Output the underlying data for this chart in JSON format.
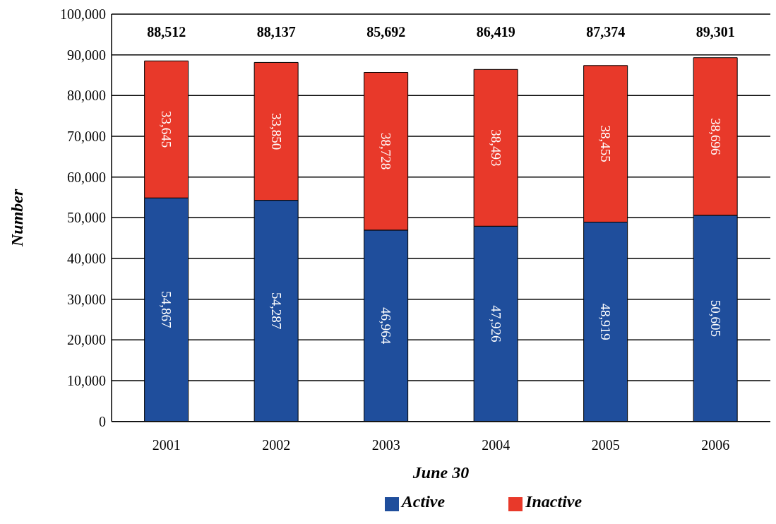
{
  "chart_data": {
    "type": "bar",
    "stacked": true,
    "xlabel": "June 30",
    "ylabel": "Number",
    "categories": [
      "2001",
      "2002",
      "2003",
      "2004",
      "2005",
      "2006"
    ],
    "series": [
      {
        "name": "Active",
        "color": "#1f4e9c",
        "values": [
          54867,
          54287,
          46964,
          47926,
          48919,
          50605
        ],
        "value_labels": [
          "54,867",
          "54,287",
          "46,964",
          "47,926",
          "48,919",
          "50,605"
        ]
      },
      {
        "name": "Inactive",
        "color": "#e8392a",
        "values": [
          33645,
          33850,
          38728,
          38493,
          38455,
          38696
        ],
        "value_labels": [
          "33,645",
          "33,850",
          "38,728",
          "38,493",
          "38,455",
          "38,696"
        ]
      }
    ],
    "totals": [
      "88,512",
      "88,137",
      "85,692",
      "86,419",
      "87,374",
      "89,301"
    ],
    "ylim": [
      0,
      100000
    ],
    "yticks": [
      {
        "value": 0,
        "label": "0"
      },
      {
        "value": 10000,
        "label": "10,000"
      },
      {
        "value": 20000,
        "label": "20,000"
      },
      {
        "value": 30000,
        "label": "30,000"
      },
      {
        "value": 40000,
        "label": "40,000"
      },
      {
        "value": 50000,
        "label": "50,000"
      },
      {
        "value": 60000,
        "label": "60,000"
      },
      {
        "value": 70000,
        "label": "70,000"
      },
      {
        "value": 80000,
        "label": "80,000"
      },
      {
        "value": 90000,
        "label": "90,000"
      },
      {
        "value": 100000,
        "label": "100,000"
      }
    ],
    "grid": "y",
    "legend": "bottom"
  }
}
